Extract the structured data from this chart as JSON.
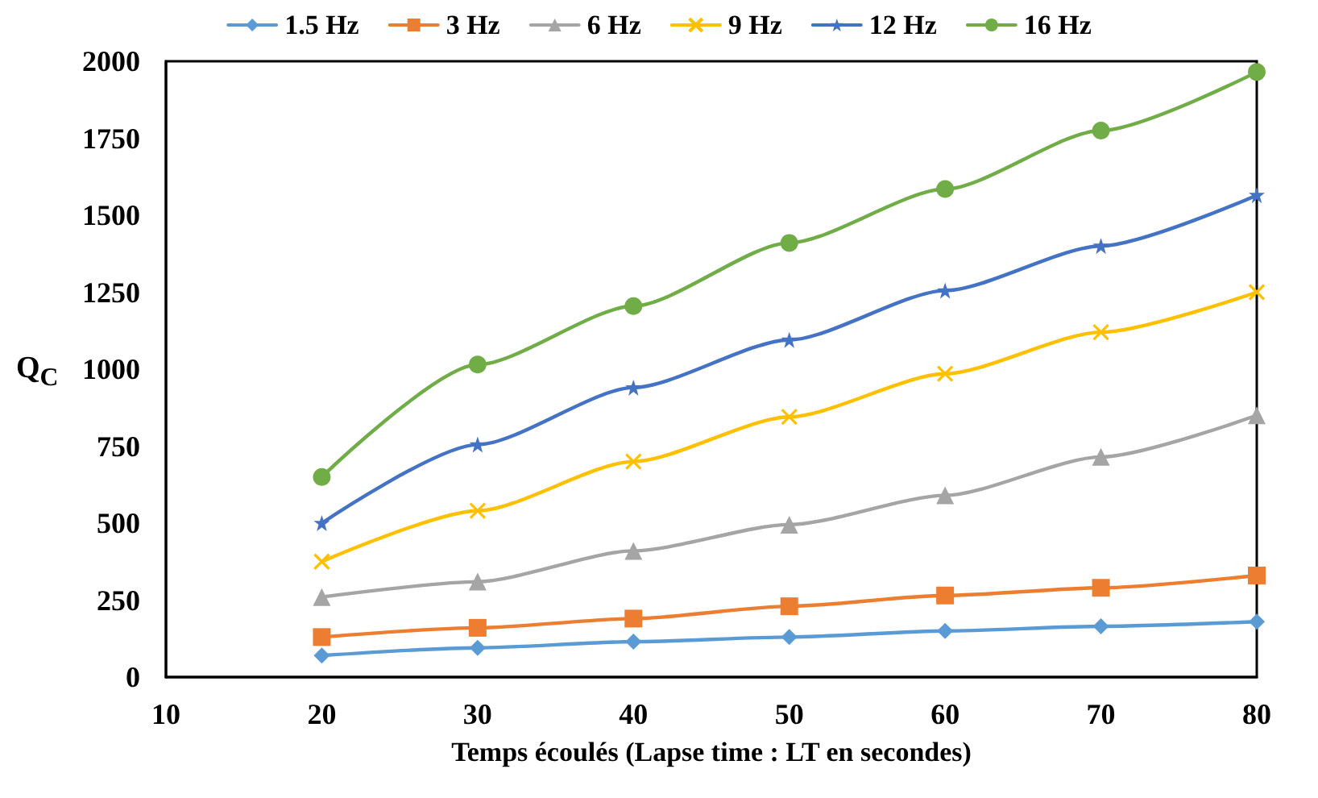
{
  "chart_data": {
    "type": "line",
    "xlabel": "Temps écoulés (Lapse time : LT en secondes)",
    "ylabel": "Q$_{C}$",
    "x": [
      20,
      30,
      40,
      50,
      60,
      70,
      80
    ],
    "xlim": [
      10,
      80
    ],
    "xticks": [
      10,
      20,
      30,
      40,
      50,
      60,
      70,
      80
    ],
    "ylim": [
      0,
      2000
    ],
    "yticks": [
      0,
      250,
      500,
      750,
      1000,
      1250,
      1500,
      1750,
      2000
    ],
    "grid": false,
    "legend": "top",
    "line_style": "solid",
    "series": [
      {
        "name": "1.5 Hz",
        "color": "#5b9bd5",
        "marker": "diamond",
        "values": [
          70,
          95,
          115,
          130,
          150,
          165,
          180
        ]
      },
      {
        "name": "3 Hz",
        "color": "#ed7d31",
        "marker": "square",
        "values": [
          130,
          160,
          190,
          230,
          265,
          290,
          330
        ]
      },
      {
        "name": "6 Hz",
        "color": "#a5a5a5",
        "marker": "triangle",
        "values": [
          260,
          310,
          410,
          495,
          590,
          715,
          850
        ]
      },
      {
        "name": "9 Hz",
        "color": "#ffc000",
        "marker": "cross",
        "values": [
          375,
          540,
          700,
          845,
          985,
          1120,
          1250
        ]
      },
      {
        "name": "12 Hz",
        "color": "#4472c4",
        "marker": "star",
        "values": [
          500,
          755,
          940,
          1095,
          1255,
          1400,
          1565
        ]
      },
      {
        "name": "16 Hz",
        "color": "#70ad47",
        "marker": "circle",
        "values": [
          650,
          1015,
          1205,
          1410,
          1585,
          1775,
          1965
        ]
      }
    ]
  }
}
